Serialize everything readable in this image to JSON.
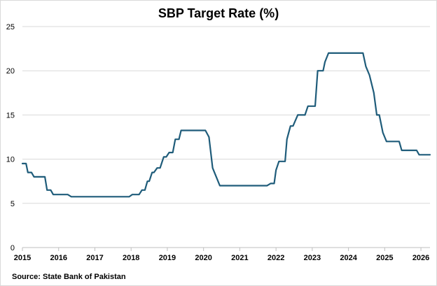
{
  "chart_data": {
    "type": "line",
    "title": "SBP Target Rate (%)",
    "xlabel": "",
    "ylabel": "",
    "source": "Source: State Bank of Pakistan",
    "xlim": [
      2015.0,
      2026.25
    ],
    "ylim": [
      0,
      25
    ],
    "y_ticks": [
      0,
      5,
      10,
      15,
      20,
      25
    ],
    "x_ticks": [
      2015,
      2016,
      2017,
      2018,
      2019,
      2020,
      2021,
      2022,
      2023,
      2024,
      2025,
      2026
    ],
    "grid": "horizontal",
    "legend": "none",
    "colors": {
      "line": "#1f5c7a",
      "grid": "#d9d9d9",
      "axis": "#bfbfbf"
    },
    "series": [
      {
        "x": [
          2015.0,
          2015.1,
          2015.15,
          2015.25,
          2015.32,
          2015.62,
          2015.68,
          2015.78,
          2015.85,
          2016.25,
          2016.35,
          2017.25,
          2017.95,
          2018.03,
          2018.22,
          2018.3,
          2018.38,
          2018.45,
          2018.5,
          2018.58,
          2018.63,
          2018.72,
          2018.8,
          2018.9,
          2018.97,
          2019.05,
          2019.15,
          2019.22,
          2019.32,
          2019.38,
          2019.45,
          2019.55,
          2020.05,
          2020.15,
          2020.25,
          2020.35,
          2020.45,
          2021.75,
          2021.85,
          2021.95,
          2022.0,
          2022.08,
          2022.15,
          2022.25,
          2022.3,
          2022.4,
          2022.47,
          2022.6,
          2022.7,
          2022.8,
          2022.88,
          2023.08,
          2023.15,
          2023.3,
          2023.35,
          2023.45,
          2023.55,
          2024.4,
          2024.48,
          2024.58,
          2024.7,
          2024.78,
          2024.85,
          2024.95,
          2025.0,
          2025.05,
          2025.35,
          2025.4,
          2025.47,
          2025.8,
          2025.88,
          2025.95,
          2026.25
        ],
        "y": [
          9.5,
          9.5,
          8.5,
          8.5,
          8.0,
          8.0,
          6.5,
          6.5,
          6.0,
          6.0,
          5.75,
          5.75,
          5.75,
          6.0,
          6.0,
          6.5,
          6.5,
          7.5,
          7.5,
          8.5,
          8.5,
          9.0,
          9.0,
          10.25,
          10.25,
          10.75,
          10.75,
          12.25,
          12.25,
          13.25,
          13.25,
          13.25,
          13.25,
          12.5,
          9.0,
          8.0,
          7.0,
          7.0,
          7.25,
          7.25,
          8.75,
          9.75,
          9.75,
          9.75,
          12.25,
          13.75,
          13.75,
          15.0,
          15.0,
          15.0,
          16.0,
          16.0,
          20.0,
          20.0,
          21.0,
          22.0,
          22.0,
          22.0,
          20.5,
          19.5,
          17.5,
          15.0,
          15.0,
          13.0,
          12.5,
          12.0,
          12.0,
          12.0,
          11.0,
          11.0,
          11.0,
          10.5,
          10.5
        ]
      }
    ]
  }
}
